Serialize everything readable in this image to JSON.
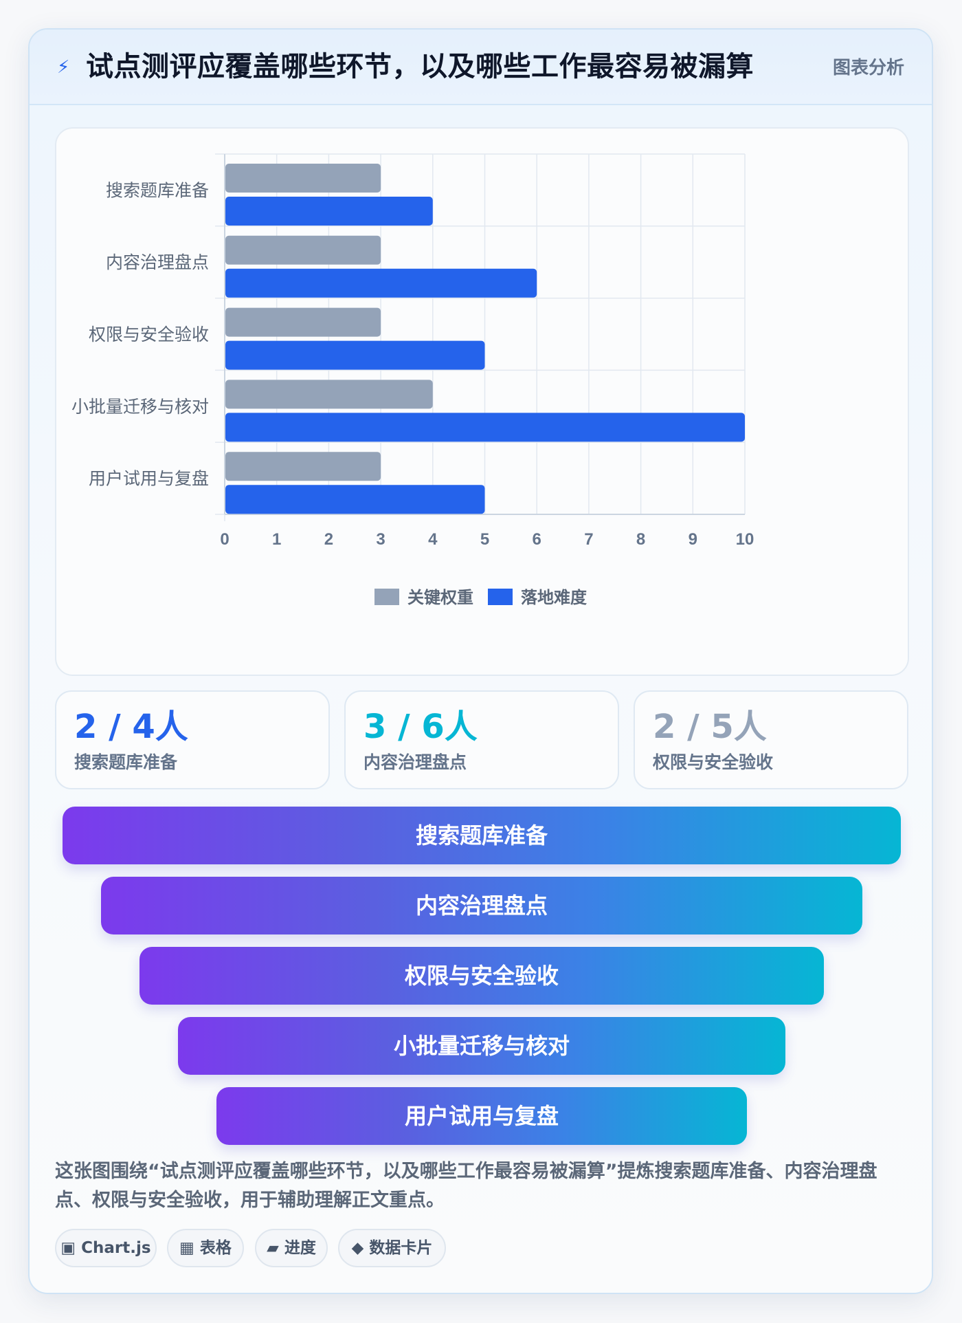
{
  "header": {
    "icon": "lightning-icon",
    "title": "试点测评应覆盖哪些环节，以及哪些工作最容易被漏算",
    "tag": "图表分析"
  },
  "chart_data": {
    "type": "bar",
    "orientation": "horizontal",
    "categories": [
      "搜索题库准备",
      "内容治理盘点",
      "权限与安全验收",
      "小批量迁移与核对",
      "用户试用与复盘"
    ],
    "series": [
      {
        "name": "关键权重",
        "color": "#94a3b8",
        "values": [
          3,
          3,
          3,
          4,
          3
        ]
      },
      {
        "name": "落地难度",
        "color": "#2563eb",
        "values": [
          4,
          6,
          5,
          10,
          5
        ]
      }
    ],
    "xlim": [
      0,
      10
    ],
    "xticks": [
      "0",
      "1",
      "2",
      "3",
      "4",
      "5",
      "6",
      "7",
      "8",
      "9",
      "10"
    ],
    "grid": true,
    "legend_position": "bottom"
  },
  "stats": [
    {
      "value": "2 / 4人",
      "label": "搜索题库准备",
      "color": "#2563eb"
    },
    {
      "value": "3 / 6人",
      "label": "内容治理盘点",
      "color": "#06b6d4"
    },
    {
      "value": "2 / 5人",
      "label": "权限与安全验收",
      "color": "#94a3b8"
    }
  ],
  "funnel": [
    {
      "label": "搜索题库准备"
    },
    {
      "label": "内容治理盘点"
    },
    {
      "label": "权限与安全验收"
    },
    {
      "label": "小批量迁移与核对"
    },
    {
      "label": "用户试用与复盘"
    }
  ],
  "description": "这张图围绕“试点测评应覆盖哪些环节，以及哪些工作最容易被漏算”提炼搜索题库准备、内容治理盘点、权限与安全验收，用于辅助理解正文重点。",
  "chips": [
    {
      "icon": "▣",
      "label": "Chart.js"
    },
    {
      "icon": "▦",
      "label": "表格"
    },
    {
      "icon": "▰",
      "label": "进度"
    },
    {
      "icon": "◆",
      "label": "数据卡片"
    }
  ]
}
